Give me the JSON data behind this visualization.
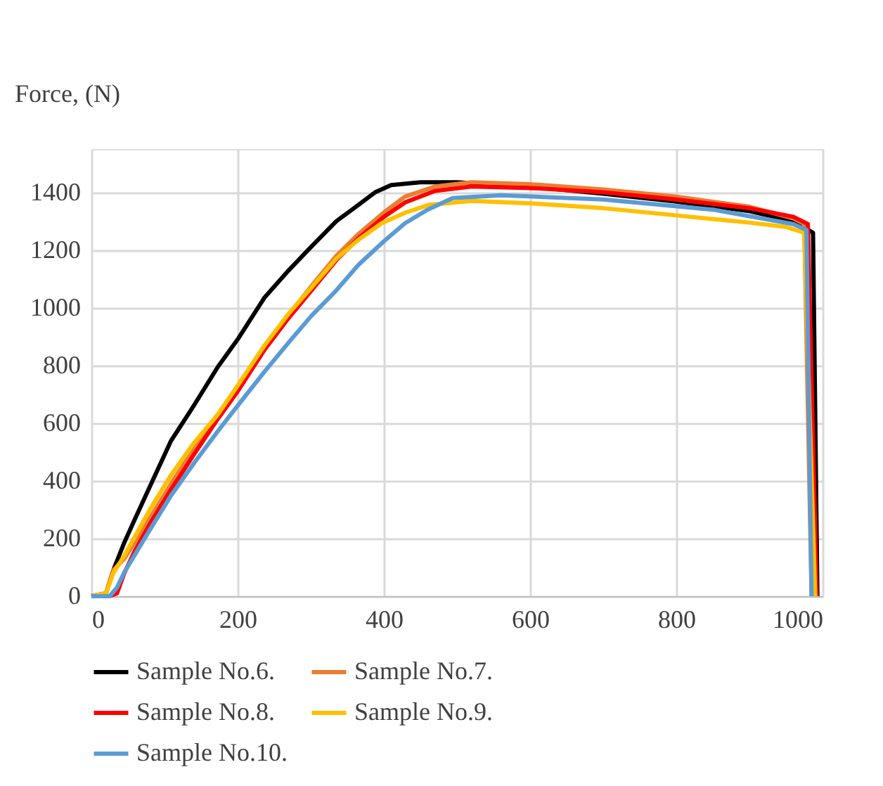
{
  "chart_data": {
    "type": "line",
    "ylabel": "Force, (N)",
    "xlim": [
      0,
      1000
    ],
    "xticks": [
      0,
      200,
      400,
      600,
      800,
      1000
    ],
    "ylim": [
      0,
      1550
    ],
    "yticks": [
      0,
      200,
      400,
      600,
      800,
      1000,
      1200,
      1400
    ],
    "grid": true,
    "legend": "bottom",
    "marker": "none",
    "line_style": "solid",
    "series": [
      {
        "name": "Sample No.6.",
        "color": "#000000",
        "x": [
          0,
          20,
          30,
          45,
          60,
          80,
          109,
          140,
          173,
          200,
          237,
          270,
          301,
          335,
          365,
          388,
          410,
          450,
          500,
          600,
          700,
          800,
          900,
          960,
          987,
          993
        ],
        "values": [
          0,
          10,
          90,
          186,
          270,
          380,
          539,
          660,
          795,
          890,
          1036,
          1130,
          1212,
          1300,
          1356,
          1400,
          1425,
          1435,
          1435,
          1420,
          1395,
          1368,
          1335,
          1300,
          1260,
          0
        ]
      },
      {
        "name": "Sample No.7.",
        "color": "#ed7d31",
        "x": [
          0,
          20,
          30,
          45,
          80,
          109,
          140,
          173,
          200,
          237,
          270,
          301,
          335,
          365,
          400,
          429,
          470,
          520,
          600,
          700,
          800,
          900,
          960,
          975,
          985
        ],
        "values": [
          0,
          10,
          90,
          130,
          270,
          390,
          510,
          630,
          720,
          865,
          975,
          1075,
          1180,
          1255,
          1330,
          1385,
          1420,
          1435,
          1428,
          1410,
          1385,
          1350,
          1310,
          1290,
          0
        ]
      },
      {
        "name": "Sample No.8.",
        "color": "#ff0000",
        "x": [
          0,
          25,
          35,
          45,
          60,
          80,
          109,
          140,
          173,
          200,
          237,
          270,
          301,
          335,
          365,
          400,
          429,
          470,
          520,
          600,
          700,
          800,
          900,
          960,
          980,
          992
        ],
        "values": [
          0,
          0,
          10,
          80,
          160,
          250,
          370,
          490,
          615,
          710,
          855,
          965,
          1060,
          1165,
          1240,
          1315,
          1365,
          1405,
          1420,
          1415,
          1400,
          1375,
          1345,
          1315,
          1290,
          0
        ]
      },
      {
        "name": "Sample No.9.",
        "color": "#ffc000",
        "x": [
          0,
          20,
          30,
          45,
          80,
          109,
          140,
          173,
          200,
          237,
          270,
          301,
          335,
          365,
          397,
          430,
          461,
          520,
          600,
          700,
          800,
          900,
          950,
          975,
          990
        ],
        "values": [
          0,
          10,
          80,
          140,
          300,
          420,
          530,
          630,
          730,
          870,
          980,
          1070,
          1170,
          1235,
          1293,
          1330,
          1356,
          1370,
          1362,
          1345,
          1320,
          1295,
          1280,
          1260,
          0
        ]
      },
      {
        "name": "Sample No.10.",
        "color": "#5b9bd5",
        "x": [
          0,
          25,
          35,
          45,
          80,
          109,
          140,
          173,
          200,
          237,
          270,
          301,
          335,
          365,
          400,
          429,
          460,
          494,
          560,
          700,
          850,
          960,
          978,
          985
        ],
        "values": [
          0,
          0,
          30,
          83,
          230,
          349,
          460,
          572,
          660,
          779,
          880,
          972,
          1060,
          1148,
          1230,
          1293,
          1340,
          1380,
          1390,
          1375,
          1340,
          1290,
          1270,
          0
        ]
      }
    ]
  }
}
